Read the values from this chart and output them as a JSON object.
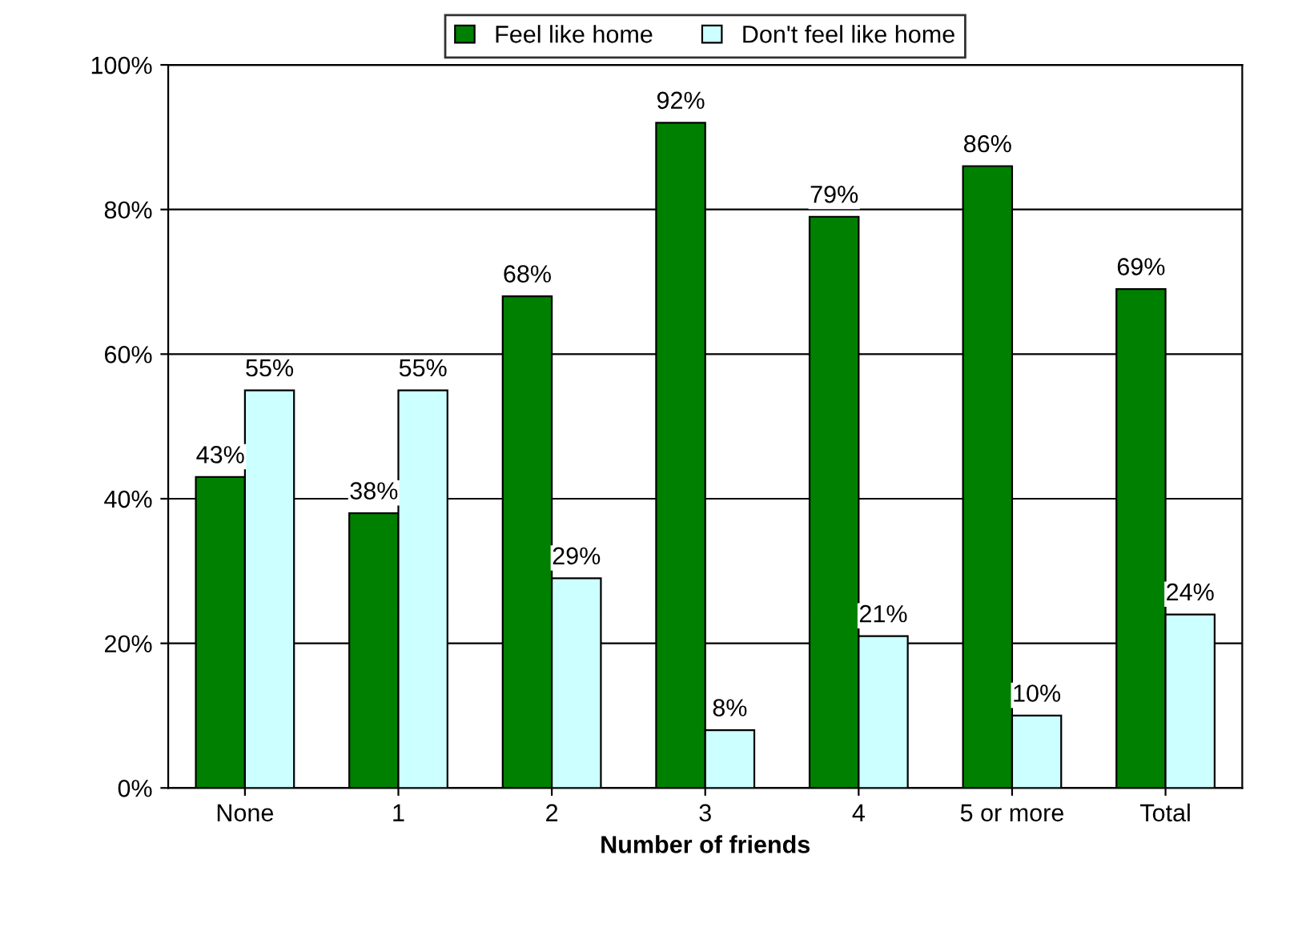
{
  "chart_data": {
    "type": "bar",
    "xlabel": "Number of friends",
    "categories": [
      "None",
      "1",
      "2",
      "3",
      "4",
      "5 or more",
      "Total"
    ],
    "series": [
      {
        "name": "Feel like home",
        "color": "#008000",
        "values": [
          43,
          38,
          68,
          92,
          79,
          86,
          69
        ],
        "value_labels": [
          "43%",
          "38%",
          "68%",
          "92%",
          "79%",
          "86%",
          "69%"
        ]
      },
      {
        "name": "Don't feel like home",
        "color": "#ccffff",
        "values": [
          55,
          55,
          29,
          8,
          21,
          10,
          24
        ],
        "value_labels": [
          "55%",
          "55%",
          "29%",
          "8%",
          "21%",
          "10%",
          "24%"
        ]
      }
    ],
    "ylim": [
      0,
      100
    ],
    "yticks": [
      {
        "value": 0,
        "label": "0%"
      },
      {
        "value": 20,
        "label": "20%"
      },
      {
        "value": 40,
        "label": "40%"
      },
      {
        "value": 60,
        "label": "60%"
      },
      {
        "value": 80,
        "label": "80%"
      },
      {
        "value": 100,
        "label": "100%"
      }
    ],
    "grid": "y",
    "legend": "top"
  }
}
